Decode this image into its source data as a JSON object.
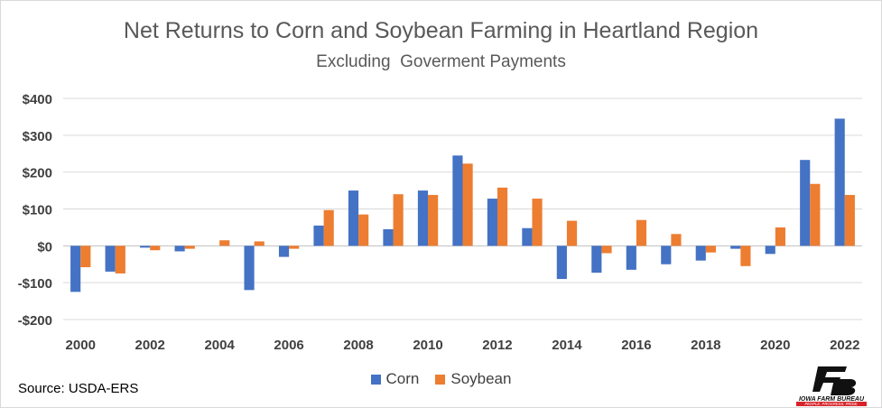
{
  "colors": {
    "corn": "#4472C4",
    "soybean": "#ED7D31",
    "gridline": "#d9d9d9",
    "axis_text": "#404040",
    "logo_red": "#d8232a"
  },
  "source_text": "Source: USDA-ERS",
  "logo": {
    "text_line1": "IOWA FARM BUREAU",
    "text_line2": "PEOPLE. PROGRESS. PRIDE."
  },
  "chart_data": {
    "type": "bar",
    "title": "Net Returns to Corn and Soybean Farming in Heartland Region",
    "subtitle": "Excluding  Goverment Payments",
    "xlabel": "",
    "ylabel": "",
    "categories": [
      "2000",
      "2001",
      "2002",
      "2003",
      "2004",
      "2005",
      "2006",
      "2007",
      "2008",
      "2009",
      "2010",
      "2011",
      "2012",
      "2013",
      "2014",
      "2015",
      "2016",
      "2017",
      "2018",
      "2019",
      "2020",
      "2021",
      "2022"
    ],
    "x_tick_labels": [
      "2000",
      "2002",
      "2004",
      "2006",
      "2008",
      "2010",
      "2012",
      "2014",
      "2016",
      "2018",
      "2020",
      "2022"
    ],
    "y_ticks": [
      -200,
      -100,
      0,
      100,
      200,
      300,
      400
    ],
    "y_tick_labels": [
      "-$200",
      "-$100",
      "$0",
      "$100",
      "$200",
      "$300",
      "$400"
    ],
    "ylim": [
      -200,
      400
    ],
    "grid": true,
    "legend_position": "bottom",
    "series": [
      {
        "name": "Corn",
        "values": [
          -125,
          -70,
          -5,
          -15,
          0,
          -120,
          -30,
          55,
          150,
          45,
          150,
          245,
          128,
          48,
          -90,
          -73,
          -65,
          -50,
          -40,
          -8,
          -22,
          233,
          345
        ]
      },
      {
        "name": "Soybean",
        "values": [
          -58,
          -75,
          -12,
          -8,
          15,
          12,
          -8,
          97,
          85,
          140,
          138,
          223,
          158,
          128,
          68,
          -20,
          70,
          32,
          -18,
          -55,
          50,
          168,
          138
        ]
      }
    ]
  }
}
